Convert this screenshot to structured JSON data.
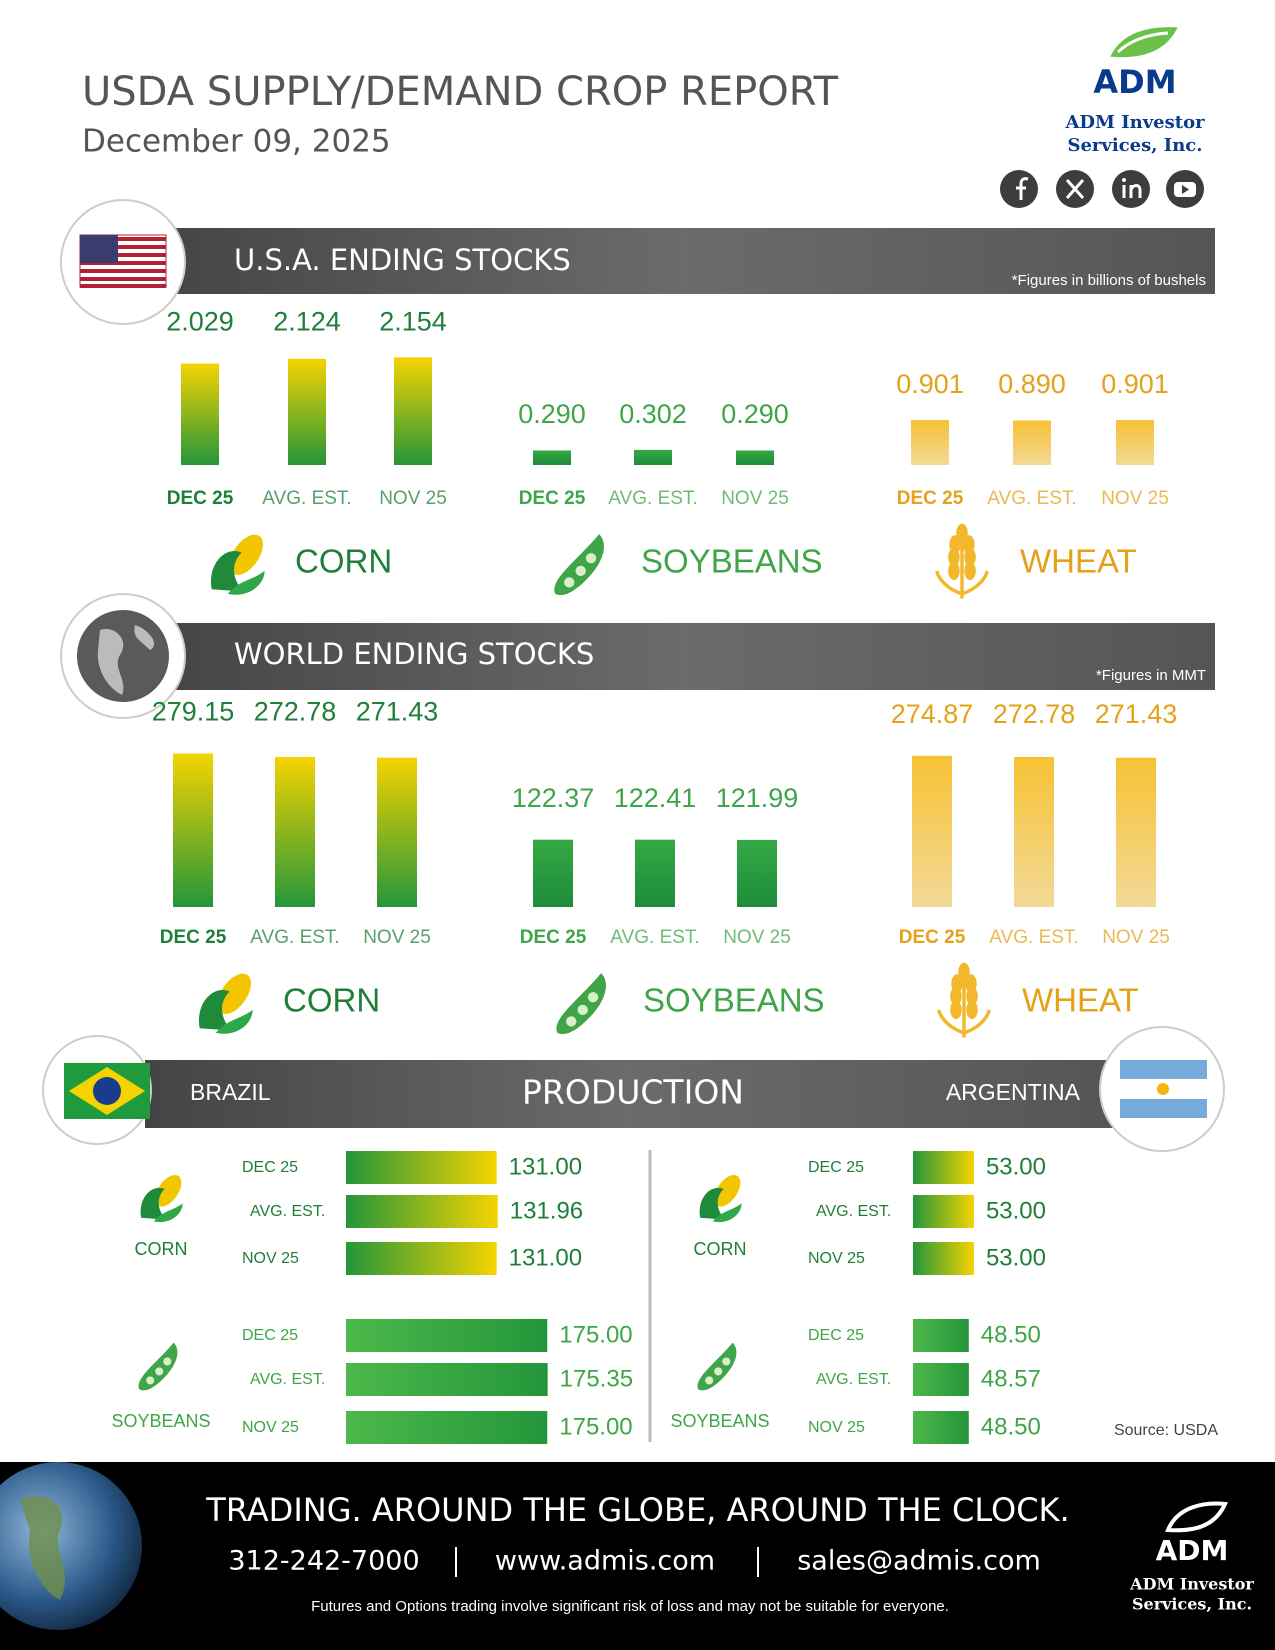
{
  "header": {
    "title": "USDA SUPPLY/DEMAND CROP REPORT",
    "date": "December 09, 2025"
  },
  "brand": {
    "name": "ADM",
    "line1": "ADM Investor",
    "line2": "Services, Inc."
  },
  "usa": {
    "title": "U.S.A. ENDING STOCKS",
    "note": "*Figures in billions of bushels",
    "crops": [
      {
        "name": "CORN",
        "color": "#1f7f3a",
        "categories": [
          "DEC 25",
          "AVG. EST.",
          "NOV 25"
        ],
        "values": [
          2.029,
          2.124,
          2.154
        ],
        "value_labels": [
          "2.029",
          "2.124",
          "2.154"
        ]
      },
      {
        "name": "SOYBEANS",
        "color": "#3fa548",
        "categories": [
          "DEC 25",
          "AVG. EST.",
          "NOV 25"
        ],
        "values": [
          0.29,
          0.302,
          0.29
        ],
        "value_labels": [
          "0.290",
          "0.302",
          "0.290"
        ]
      },
      {
        "name": "WHEAT",
        "color": "#e3a21a",
        "categories": [
          "DEC 25",
          "AVG. EST.",
          "NOV 25"
        ],
        "values": [
          0.901,
          0.89,
          0.901
        ],
        "value_labels": [
          "0.901",
          "0.890",
          "0.901"
        ]
      }
    ]
  },
  "world": {
    "title": "WORLD ENDING STOCKS",
    "note": "*Figures in MMT",
    "crops": [
      {
        "name": "CORN",
        "color": "#1f7f3a",
        "categories": [
          "DEC 25",
          "AVG. EST.",
          "NOV 25"
        ],
        "values": [
          279.15,
          272.78,
          271.43
        ],
        "value_labels": [
          "279.15",
          "272.78",
          "271.43"
        ]
      },
      {
        "name": "SOYBEANS",
        "color": "#3fa548",
        "categories": [
          "DEC 25",
          "AVG. EST.",
          "NOV 25"
        ],
        "values": [
          122.37,
          122.41,
          121.99
        ],
        "value_labels": [
          "122.37",
          "122.41",
          "121.99"
        ]
      },
      {
        "name": "WHEAT",
        "color": "#e3a21a",
        "categories": [
          "DEC 25",
          "AVG. EST.",
          "NOV 25"
        ],
        "values": [
          274.87,
          272.78,
          271.43
        ],
        "value_labels": [
          "274.87",
          "272.78",
          "271.43"
        ]
      }
    ]
  },
  "production": {
    "title": "PRODUCTION",
    "countries": [
      {
        "name": "BRAZIL",
        "crops": [
          {
            "name": "CORN",
            "categories": [
              "DEC 25",
              "AVG. EST.",
              "NOV 25"
            ],
            "values": [
              131,
              131.96,
              131
            ],
            "value_labels": [
              "131.00",
              "131.96",
              "131.00"
            ]
          },
          {
            "name": "SOYBEANS",
            "categories": [
              "DEC 25",
              "AVG. EST.",
              "NOV 25"
            ],
            "values": [
              175,
              175.35,
              175
            ],
            "value_labels": [
              "175.00",
              "175.35",
              "175.00"
            ]
          }
        ]
      },
      {
        "name": "ARGENTINA",
        "crops": [
          {
            "name": "CORN",
            "categories": [
              "DEC 25",
              "AVG. EST.",
              "NOV 25"
            ],
            "values": [
              53,
              53,
              53
            ],
            "value_labels": [
              "53.00",
              "53.00",
              "53.00"
            ]
          },
          {
            "name": "SOYBEANS",
            "categories": [
              "DEC 25",
              "AVG. EST.",
              "NOV 25"
            ],
            "values": [
              48.5,
              48.57,
              48.5
            ],
            "value_labels": [
              "48.50",
              "48.57",
              "48.50"
            ]
          }
        ]
      }
    ]
  },
  "source": "Source: USDA",
  "footer": {
    "tagline": "TRADING. AROUND THE GLOBE, AROUND THE CLOCK.",
    "phone": "312-242-7000",
    "website": "www.admis.com",
    "email": "sales@admis.com",
    "disclaimer": "Futures and Options trading involve significant risk of loss and may not be suitable for everyone."
  }
}
